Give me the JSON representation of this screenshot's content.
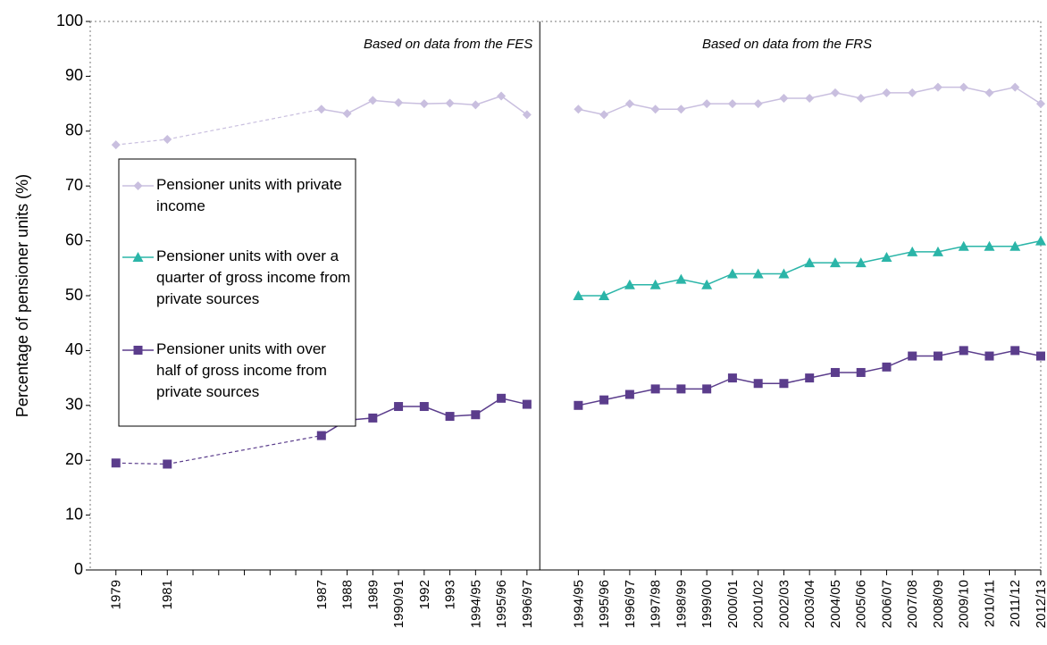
{
  "chart_data": {
    "type": "line",
    "y_label": "Percentage of pensioner units (%)",
    "ylim": [
      0,
      100
    ],
    "yticks": [
      0,
      10,
      20,
      30,
      40,
      50,
      60,
      70,
      80,
      90,
      100
    ],
    "grid": false,
    "legend": "left",
    "sections": [
      {
        "title": "Based on data from the FES",
        "categories": [
          "1979",
          null,
          "1981",
          null,
          null,
          null,
          null,
          null,
          "1987",
          "1988",
          "1989",
          "1990/91",
          "1992",
          "1993",
          "1994/95",
          "1995/96",
          "1996/97"
        ]
      },
      {
        "title": "Based on data from the FRS",
        "categories": [
          "1994/95",
          "1995/96",
          "1996/97",
          "1997/98",
          "1998/99",
          "1999/00",
          "2000/01",
          "2001/02",
          "2002/03",
          "2003/04",
          "2004/05",
          "2005/06",
          "2006/07",
          "2007/08",
          "2008/09",
          "2009/10",
          "2010/11",
          "2011/12",
          "2012/13"
        ]
      }
    ],
    "series": [
      {
        "name": "Pensioner units with private income",
        "color": "#c9bfdf",
        "marker": "diamond",
        "values": [
          [
            77.5,
            null,
            78.5,
            null,
            null,
            null,
            null,
            null,
            84,
            83.2,
            85.6,
            85.2,
            85,
            85.1,
            84.8,
            86.4,
            83
          ],
          [
            84,
            83,
            85,
            84,
            84,
            85,
            85,
            85,
            86,
            86,
            87,
            86,
            87,
            87,
            88,
            88,
            87,
            88,
            85
          ]
        ]
      },
      {
        "name": "Pensioner units with over a quarter of gross income from private sources",
        "color": "#2bb5a8",
        "marker": "triangle",
        "values": [
          [
            null,
            null,
            null,
            null,
            null,
            null,
            null,
            null,
            null,
            null,
            null,
            null,
            null,
            null,
            null,
            null,
            null
          ],
          [
            50,
            50,
            52,
            52,
            53,
            52,
            54,
            54,
            54,
            56,
            56,
            56,
            57,
            58,
            58,
            59,
            59,
            59,
            60
          ]
        ]
      },
      {
        "name": "Pensioner units with over half of gross income from private sources",
        "color": "#5b3d8c",
        "marker": "square",
        "values": [
          [
            19.5,
            null,
            19.3,
            null,
            null,
            null,
            null,
            null,
            24.5,
            27.3,
            27.7,
            29.8,
            29.8,
            28,
            28.3,
            31.3,
            30.2
          ],
          [
            30,
            31,
            32,
            33,
            33,
            33,
            35,
            34,
            34,
            35,
            36,
            36,
            37,
            39,
            39,
            40,
            39,
            40,
            39
          ]
        ]
      }
    ]
  }
}
